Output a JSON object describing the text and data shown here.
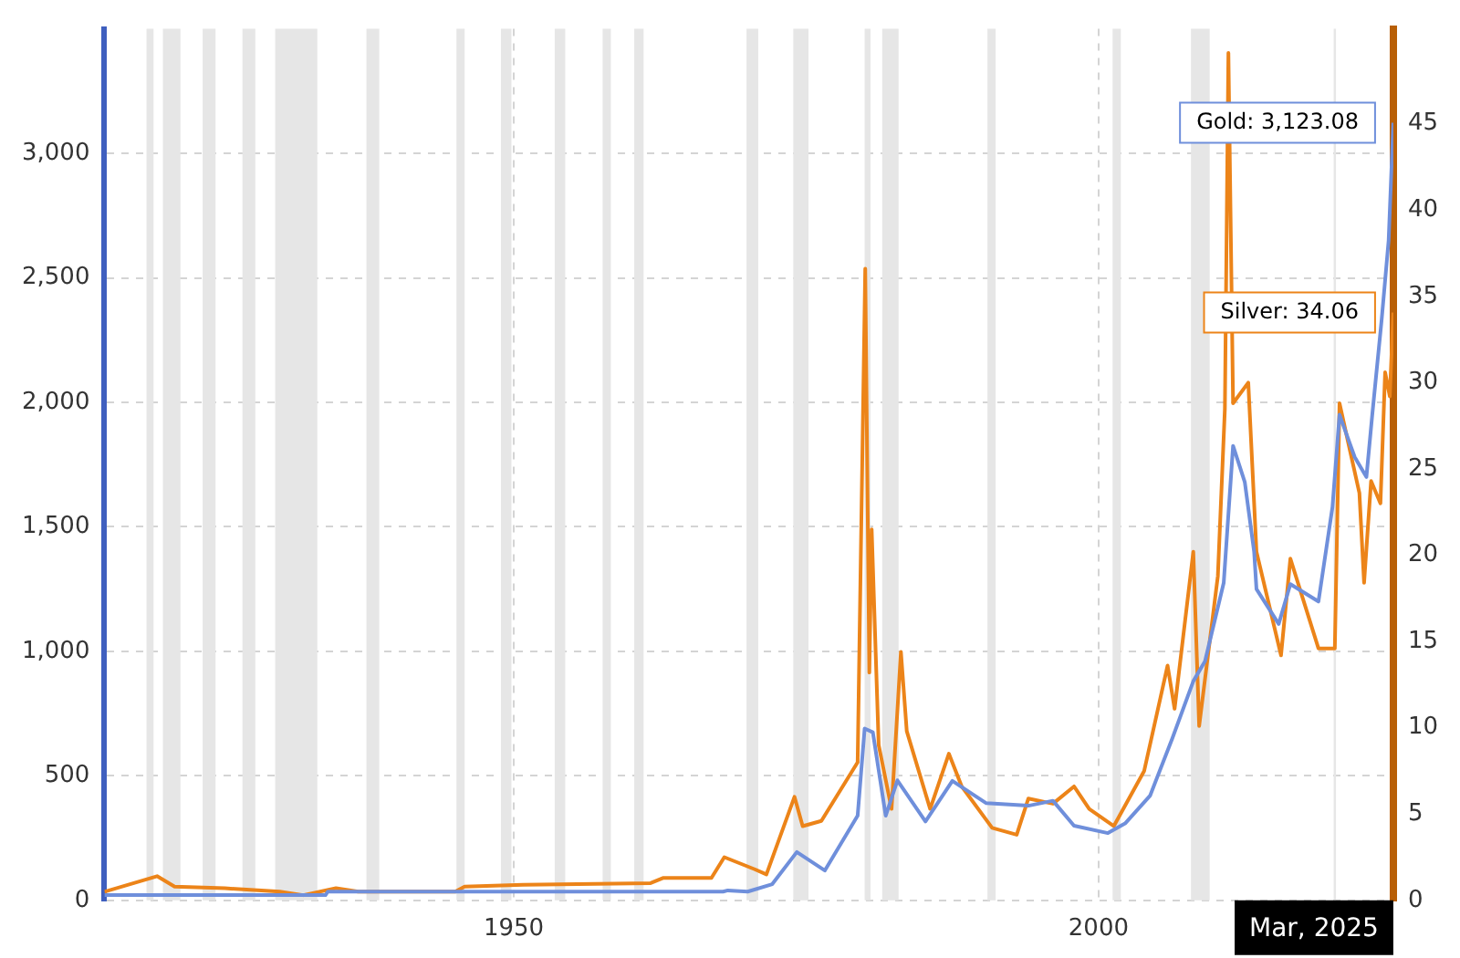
{
  "chart_data": {
    "type": "line",
    "xlim": [
      1915,
      2025.2
    ],
    "xticks": [
      1950,
      2000
    ],
    "ylim": [
      0,
      3500
    ],
    "yticks": [
      0,
      {
        "value": 500,
        "label": "500"
      },
      {
        "value": 1000,
        "label": "1,000"
      },
      {
        "value": 1500,
        "label": "1,500"
      },
      {
        "value": 2000,
        "label": "2,000"
      },
      {
        "value": 2500,
        "label": "2,500"
      },
      {
        "value": 3000,
        "label": "3,000"
      }
    ],
    "y2lim": [
      0,
      50.5
    ],
    "y2ticks": [
      0,
      5,
      10,
      15,
      20,
      25,
      30,
      35,
      40,
      45
    ],
    "grid": true,
    "legend": false,
    "marker": "none",
    "line_style": "solid",
    "series": [
      {
        "color": "#6f8fdb",
        "x": [
          1915,
          1933.9,
          1934.1,
          1967.9,
          1968.3,
          1970,
          1972.1,
          1974.2,
          1976.6,
          1979.4,
          1980.0,
          1980.7,
          1981.8,
          1982.8,
          1985.2,
          1987.5,
          1990.4,
          1994,
          1996.1,
          1997.9,
          2000.8,
          2002.3,
          2004.4,
          2006.3,
          2008.1,
          2009.1,
          2010.7,
          2011.5,
          2012.5,
          2013.3,
          2013.5,
          2015.4,
          2016.4,
          2018.8,
          2020.0,
          2020.6,
          2021.9,
          2022.9,
          2023.4,
          2024.2,
          2024.8,
          2025.2
        ],
        "values": [
          21,
          21,
          35,
          35,
          40,
          35,
          65,
          194,
          120,
          340,
          690,
          675,
          340,
          482,
          317,
          480,
          390,
          380,
          400,
          300,
          270,
          310,
          420,
          650,
          880,
          960,
          1275,
          1825,
          1680,
          1400,
          1250,
          1110,
          1270,
          1200,
          1580,
          1950,
          1780,
          1700,
          1950,
          2330,
          2650,
          3123.08
        ],
        "value_labels": [
          null,
          null,
          null,
          null,
          null,
          null,
          null,
          null,
          null,
          null,
          null,
          null,
          null,
          null,
          null,
          null,
          null,
          null,
          null,
          null,
          null,
          null,
          null,
          null,
          null,
          null,
          null,
          null,
          null,
          null,
          null,
          null,
          null,
          null,
          null,
          null,
          null,
          null,
          null,
          null,
          null,
          "Gold: 3,123.08"
        ]
      },
      {
        "color": "#ec8419",
        "axis": "y2",
        "x": [
          1915,
          1919.5,
          1921,
          1925.3,
          1930,
          1932,
          1934.8,
          1936.7,
          1945,
          1945.8,
          1950.8,
          1961.7,
          1962.8,
          1966.9,
          1968,
          1970.6,
          1971.6,
          1974,
          1974.7,
          1976.3,
          1979.4,
          1980.05,
          1980.4,
          1980.6,
          1981.2,
          1982.3,
          1983.1,
          1983.6,
          1985.6,
          1987.2,
          1988.3,
          1990.9,
          1993,
          1994,
          1996.1,
          1997.9,
          1999.2,
          2001.3,
          2003.9,
          2005.9,
          2006.5,
          2008.1,
          2008.6,
          2010.2,
          2010.8,
          2011.1,
          2011.5,
          2012.2,
          2012.8,
          2013.5,
          2015.6,
          2016.4,
          2018.8,
          2020.2,
          2020.6,
          2022.3,
          2022.7,
          2023.3,
          2024.1,
          2024.5,
          2024.9,
          2025.2
        ],
        "values": [
          0.5,
          1.4,
          0.8,
          0.7,
          0.5,
          0.3,
          0.7,
          0.5,
          0.5,
          0.8,
          0.9,
          1.0,
          1.3,
          1.3,
          2.5,
          1.8,
          1.5,
          6,
          4.3,
          4.6,
          8,
          36.6,
          13.2,
          21.5,
          9,
          5.3,
          14.4,
          9.8,
          5.3,
          8.5,
          6.6,
          4.2,
          3.8,
          5.9,
          5.6,
          6.6,
          5.3,
          4.3,
          7.5,
          13.6,
          11.1,
          20.2,
          10.1,
          18.8,
          28.5,
          49.1,
          28.8,
          null,
          30,
          20.2,
          14.2,
          19.8,
          14.6,
          14.6,
          28.8,
          23.6,
          18.4,
          24.3,
          23,
          30.6,
          29.2,
          34.06
        ],
        "value_labels": [
          null,
          null,
          null,
          null,
          null,
          null,
          null,
          null,
          null,
          null,
          null,
          null,
          null,
          null,
          null,
          null,
          null,
          null,
          null,
          null,
          null,
          null,
          null,
          null,
          null,
          null,
          null,
          null,
          null,
          null,
          null,
          null,
          null,
          null,
          null,
          null,
          null,
          null,
          null,
          null,
          null,
          null,
          null,
          null,
          null,
          null,
          null,
          null,
          null,
          null,
          null,
          null,
          null,
          null,
          null,
          null,
          null,
          null,
          null,
          null,
          null,
          "Silver: 34.06"
        ]
      }
    ],
    "bands": [
      {
        "axis": "x",
        "from": 1918.6,
        "to": 1919.2,
        "color": "#e6e6e6"
      },
      {
        "axis": "x",
        "from": 1920.0,
        "to": 1921.5,
        "color": "#e6e6e6"
      },
      {
        "axis": "x",
        "from": 1923.4,
        "to": 1924.5,
        "color": "#e6e6e6"
      },
      {
        "axis": "x",
        "from": 1926.8,
        "to": 1927.9,
        "color": "#e6e6e6"
      },
      {
        "axis": "x",
        "from": 1929.6,
        "to": 1933.2,
        "color": "#e6e6e6"
      },
      {
        "axis": "x",
        "from": 1937.4,
        "to": 1938.5,
        "color": "#e6e6e6"
      },
      {
        "axis": "x",
        "from": 1945.1,
        "to": 1945.8,
        "color": "#e6e6e6"
      },
      {
        "axis": "x",
        "from": 1948.9,
        "to": 1949.8,
        "color": "#e6e6e6"
      },
      {
        "axis": "x",
        "from": 1953.5,
        "to": 1954.4,
        "color": "#e6e6e6"
      },
      {
        "axis": "x",
        "from": 1957.6,
        "to": 1958.3,
        "color": "#e6e6e6"
      },
      {
        "axis": "x",
        "from": 1960.3,
        "to": 1961.1,
        "color": "#e6e6e6"
      },
      {
        "axis": "x",
        "from": 1969.9,
        "to": 1970.9,
        "color": "#e6e6e6"
      },
      {
        "axis": "x",
        "from": 1973.9,
        "to": 1975.2,
        "color": "#e6e6e6"
      },
      {
        "axis": "x",
        "from": 1980.0,
        "to": 1980.5,
        "color": "#e6e6e6"
      },
      {
        "axis": "x",
        "from": 1981.5,
        "to": 1982.9,
        "color": "#e6e6e6"
      },
      {
        "axis": "x",
        "from": 1990.5,
        "to": 1991.2,
        "color": "#e6e6e6"
      },
      {
        "axis": "x",
        "from": 2001.2,
        "to": 2001.9,
        "color": "#e6e6e6"
      },
      {
        "axis": "x",
        "from": 2007.9,
        "to": 2009.5,
        "color": "#e6e6e6"
      },
      {
        "axis": "x",
        "from": 2020.1,
        "to": 2020.3,
        "color": "#e6e6e6"
      }
    ],
    "annotations": [
      "Mar, 2025"
    ]
  }
}
